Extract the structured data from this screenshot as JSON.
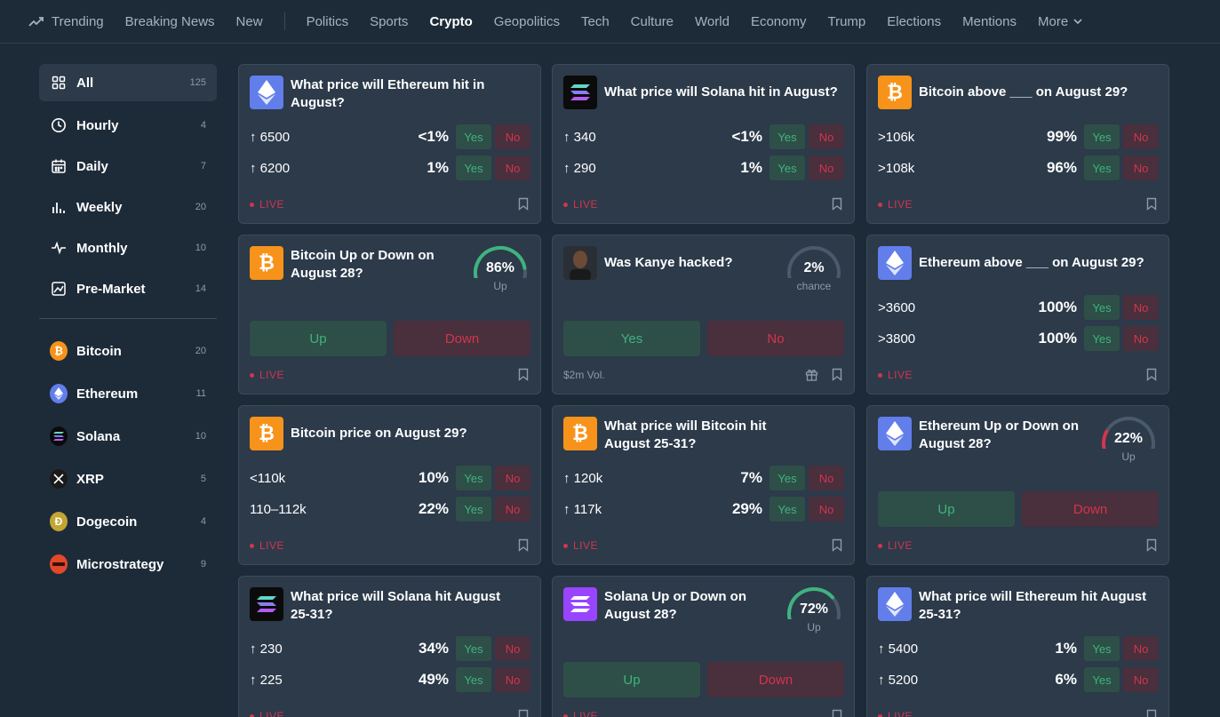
{
  "nav": {
    "items": [
      "Trending",
      "Breaking News",
      "New",
      "Politics",
      "Sports",
      "Crypto",
      "Geopolitics",
      "Tech",
      "Culture",
      "World",
      "Economy",
      "Trump",
      "Elections",
      "Mentions",
      "More"
    ],
    "active": "Crypto"
  },
  "sidebar": {
    "filters": [
      {
        "label": "All",
        "count": "125"
      },
      {
        "label": "Hourly",
        "count": "4"
      },
      {
        "label": "Daily",
        "count": "7"
      },
      {
        "label": "Weekly",
        "count": "20"
      },
      {
        "label": "Monthly",
        "count": "10"
      },
      {
        "label": "Pre-Market",
        "count": "14"
      }
    ],
    "coins": [
      {
        "label": "Bitcoin",
        "count": "20",
        "color": "#f7931a",
        "glyph": "₿"
      },
      {
        "label": "Ethereum",
        "count": "11",
        "color": "#627eea",
        "glyph": "◆"
      },
      {
        "label": "Solana",
        "count": "10",
        "color": "#0b0b0b",
        "glyph": "≡"
      },
      {
        "label": "XRP",
        "count": "5",
        "color": "#1a1a1a",
        "glyph": "✕"
      },
      {
        "label": "Dogecoin",
        "count": "4",
        "color": "#c2a633",
        "glyph": "Ð"
      },
      {
        "label": "Microstrategy",
        "count": "9",
        "color": "#e2482a",
        "glyph": "━"
      }
    ]
  },
  "cards": [
    {
      "title": "What price will Ethereum hit in August?",
      "rows": [
        {
          "label": "↑ 6500",
          "pct": "<1%"
        },
        {
          "label": "↑ 6200",
          "pct": "1%"
        }
      ],
      "footer": "LIVE"
    },
    {
      "title": "What price will Solana hit in August?",
      "rows": [
        {
          "label": "↑ 340",
          "pct": "<1%"
        },
        {
          "label": "↑ 290",
          "pct": "1%"
        }
      ],
      "footer": "LIVE"
    },
    {
      "title": "Bitcoin above ___ on August 29?",
      "rows": [
        {
          "label": ">106k",
          "pct": "99%"
        },
        {
          "label": ">108k",
          "pct": "96%"
        }
      ],
      "footer": "LIVE"
    },
    {
      "title": "Bitcoin Up or Down on August 28?",
      "gauge": {
        "value": "86%",
        "sub": "Up",
        "level": 0.86
      },
      "buttons": [
        "Up",
        "Down"
      ],
      "footer": "LIVE"
    },
    {
      "title": "Was Kanye hacked?",
      "gauge": {
        "value": "2%",
        "sub": "chance",
        "level": 0.02
      },
      "buttons": [
        "Yes",
        "No"
      ],
      "footer_vol": "$2m Vol."
    },
    {
      "title": "Ethereum above ___ on August 29?",
      "rows": [
        {
          "label": ">3600",
          "pct": "100%"
        },
        {
          "label": ">3800",
          "pct": "100%"
        }
      ],
      "footer": "LIVE"
    },
    {
      "title": "Bitcoin price on August 29?",
      "rows": [
        {
          "label": "<110k",
          "pct": "10%"
        },
        {
          "label": "110–112k",
          "pct": "22%"
        }
      ],
      "footer": "LIVE"
    },
    {
      "title": "What price will Bitcoin hit August 25-31?",
      "rows": [
        {
          "label": "↑ 120k",
          "pct": "7%"
        },
        {
          "label": "↑ 117k",
          "pct": "29%"
        }
      ],
      "footer": "LIVE"
    },
    {
      "title": "Ethereum Up or Down on August 28?",
      "gauge": {
        "value": "22%",
        "sub": "Up",
        "level": 0.22
      },
      "buttons": [
        "Up",
        "Down"
      ],
      "footer": "LIVE"
    },
    {
      "title": "What price will Solana hit August 25-31?",
      "rows": [
        {
          "label": "↑ 230",
          "pct": "34%"
        },
        {
          "label": "↑ 225",
          "pct": "49%"
        }
      ],
      "footer": "LIVE"
    },
    {
      "title": "Solana Up or Down on August 28?",
      "gauge": {
        "value": "72%",
        "sub": "Up",
        "level": 0.72
      },
      "buttons": [
        "Up",
        "Down"
      ],
      "footer": "LIVE"
    },
    {
      "title": "What price will Ethereum hit August 25-31?",
      "rows": [
        {
          "label": "↑ 5400",
          "pct": "1%"
        },
        {
          "label": "↑ 5200",
          "pct": "6%"
        }
      ],
      "footer": "LIVE"
    }
  ],
  "labels": {
    "yes": "Yes",
    "no": "No"
  },
  "colors": {
    "accent_green": "#3fb37f",
    "accent_red": "#d2354c",
    "bg": "#1d2b39",
    "card": "#2c3a4a"
  }
}
